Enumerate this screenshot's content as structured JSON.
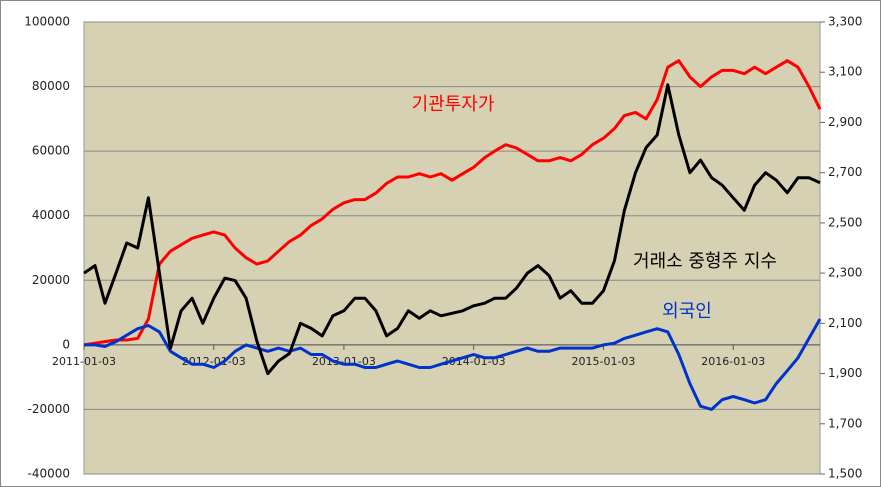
{
  "chart_data": {
    "type": "line",
    "x": [
      "2011-01-03",
      "2011-02-03",
      "2011-03-03",
      "2011-04-03",
      "2011-05-03",
      "2011-06-03",
      "2011-07-03",
      "2011-08-03",
      "2011-09-03",
      "2011-10-03",
      "2011-11-03",
      "2011-12-03",
      "2012-01-03",
      "2012-02-03",
      "2012-03-03",
      "2012-04-03",
      "2012-05-03",
      "2012-06-03",
      "2012-07-03",
      "2012-08-03",
      "2012-09-03",
      "2012-10-03",
      "2012-11-03",
      "2012-12-03",
      "2013-01-03",
      "2013-02-03",
      "2013-03-03",
      "2013-04-03",
      "2013-05-03",
      "2013-06-03",
      "2013-07-03",
      "2013-08-03",
      "2013-09-03",
      "2013-10-03",
      "2013-11-03",
      "2013-12-03",
      "2014-01-03",
      "2014-02-03",
      "2014-03-03",
      "2014-04-03",
      "2014-05-03",
      "2014-06-03",
      "2014-07-03",
      "2014-08-03",
      "2014-09-03",
      "2014-10-03",
      "2014-11-03",
      "2014-12-03",
      "2015-01-03",
      "2015-02-03",
      "2015-03-03",
      "2015-04-03",
      "2015-05-03",
      "2015-06-03",
      "2015-07-03",
      "2015-08-03",
      "2015-09-03",
      "2015-10-03",
      "2015-11-03",
      "2015-12-03",
      "2016-01-03",
      "2016-02-03",
      "2016-03-03",
      "2016-04-03",
      "2016-05-03",
      "2016-06-03",
      "2016-07-03",
      "2016-08-03",
      "2016-09-03"
    ],
    "series": [
      {
        "name": "기관투자가",
        "color": "#ff0000",
        "axis": "y",
        "values": [
          0,
          500,
          1000,
          1500,
          1500,
          2000,
          8000,
          25000,
          29000,
          31000,
          33000,
          34000,
          35000,
          34000,
          30000,
          27000,
          25000,
          26000,
          29000,
          32000,
          34000,
          37000,
          39000,
          42000,
          44000,
          45000,
          45000,
          47000,
          50000,
          52000,
          52000,
          53000,
          52000,
          53000,
          51000,
          53000,
          55000,
          58000,
          60000,
          62000,
          61000,
          59000,
          57000,
          57000,
          58000,
          57000,
          59000,
          62000,
          64000,
          67000,
          71000,
          72000,
          70000,
          76000,
          86000,
          88000,
          83000,
          80000,
          83000,
          85000,
          85000,
          84000,
          86000,
          84000,
          86000,
          88000,
          86000,
          80000,
          73000
        ]
      },
      {
        "name": "외국인",
        "color": "#0033cc",
        "axis": "y",
        "values": [
          0,
          0,
          -500,
          1000,
          3000,
          5000,
          6000,
          4000,
          -2000,
          -4000,
          -6000,
          -6000,
          -7000,
          -5000,
          -2000,
          0,
          -1000,
          -2000,
          -1000,
          -2000,
          -1000,
          -3000,
          -3000,
          -5000,
          -6000,
          -6000,
          -7000,
          -7000,
          -6000,
          -5000,
          -6000,
          -7000,
          -7000,
          -6000,
          -5000,
          -4000,
          -3000,
          -4000,
          -4000,
          -3000,
          -2000,
          -1000,
          -2000,
          -2000,
          -1000,
          -1000,
          -1000,
          -1000,
          0,
          500,
          2000,
          3000,
          4000,
          5000,
          4000,
          -3000,
          -12000,
          -19000,
          -20000,
          -17000,
          -16000,
          -17000,
          -18000,
          -17000,
          -12000,
          -8000,
          -4000,
          2000,
          8000
        ]
      },
      {
        "name": "거래소 중형주 지수",
        "color": "#000000",
        "axis": "y2",
        "values": [
          2300,
          2330,
          2180,
          2300,
          2420,
          2400,
          2600,
          2300,
          2000,
          2150,
          2200,
          2100,
          2200,
          2280,
          2270,
          2200,
          2030,
          1900,
          1950,
          1980,
          2100,
          2080,
          2050,
          2130,
          2150,
          2200,
          2200,
          2150,
          2050,
          2080,
          2150,
          2120,
          2150,
          2130,
          2140,
          2150,
          2170,
          2180,
          2200,
          2200,
          2240,
          2300,
          2330,
          2290,
          2200,
          2230,
          2180,
          2180,
          2230,
          2350,
          2550,
          2700,
          2800,
          2850,
          3050,
          2850,
          2700,
          2750,
          2680,
          2650,
          2600,
          2550,
          2650,
          2700,
          2670,
          2620,
          2680,
          2680,
          2660
        ]
      }
    ],
    "xlim": [
      "2011-01-03",
      "2016-09-03"
    ],
    "xticks": [
      "2011-01-03",
      "2012-01-03",
      "2013-01-03",
      "2014-01-03",
      "2015-01-03",
      "2016-01-03"
    ],
    "ylim": [
      -40000,
      100000
    ],
    "yticks": [
      -40000,
      -20000,
      0,
      20000,
      40000,
      60000,
      80000,
      100000
    ],
    "y2lim": [
      1500,
      3300
    ],
    "y2ticks": [
      {
        "value": 1500,
        "label": "1,500"
      },
      {
        "value": 1700,
        "label": "1,700"
      },
      {
        "value": 1900,
        "label": "1,900"
      },
      {
        "value": 2100,
        "label": "2,100"
      },
      {
        "value": 2300,
        "label": "2,300"
      },
      {
        "value": 2500,
        "label": "2,500"
      },
      {
        "value": 2700,
        "label": "2,700"
      },
      {
        "value": 2900,
        "label": "2,900"
      },
      {
        "value": 3100,
        "label": "3,100"
      },
      {
        "value": 3300,
        "label": "3,300"
      }
    ],
    "grid": true,
    "background": "#d5d1b2"
  }
}
